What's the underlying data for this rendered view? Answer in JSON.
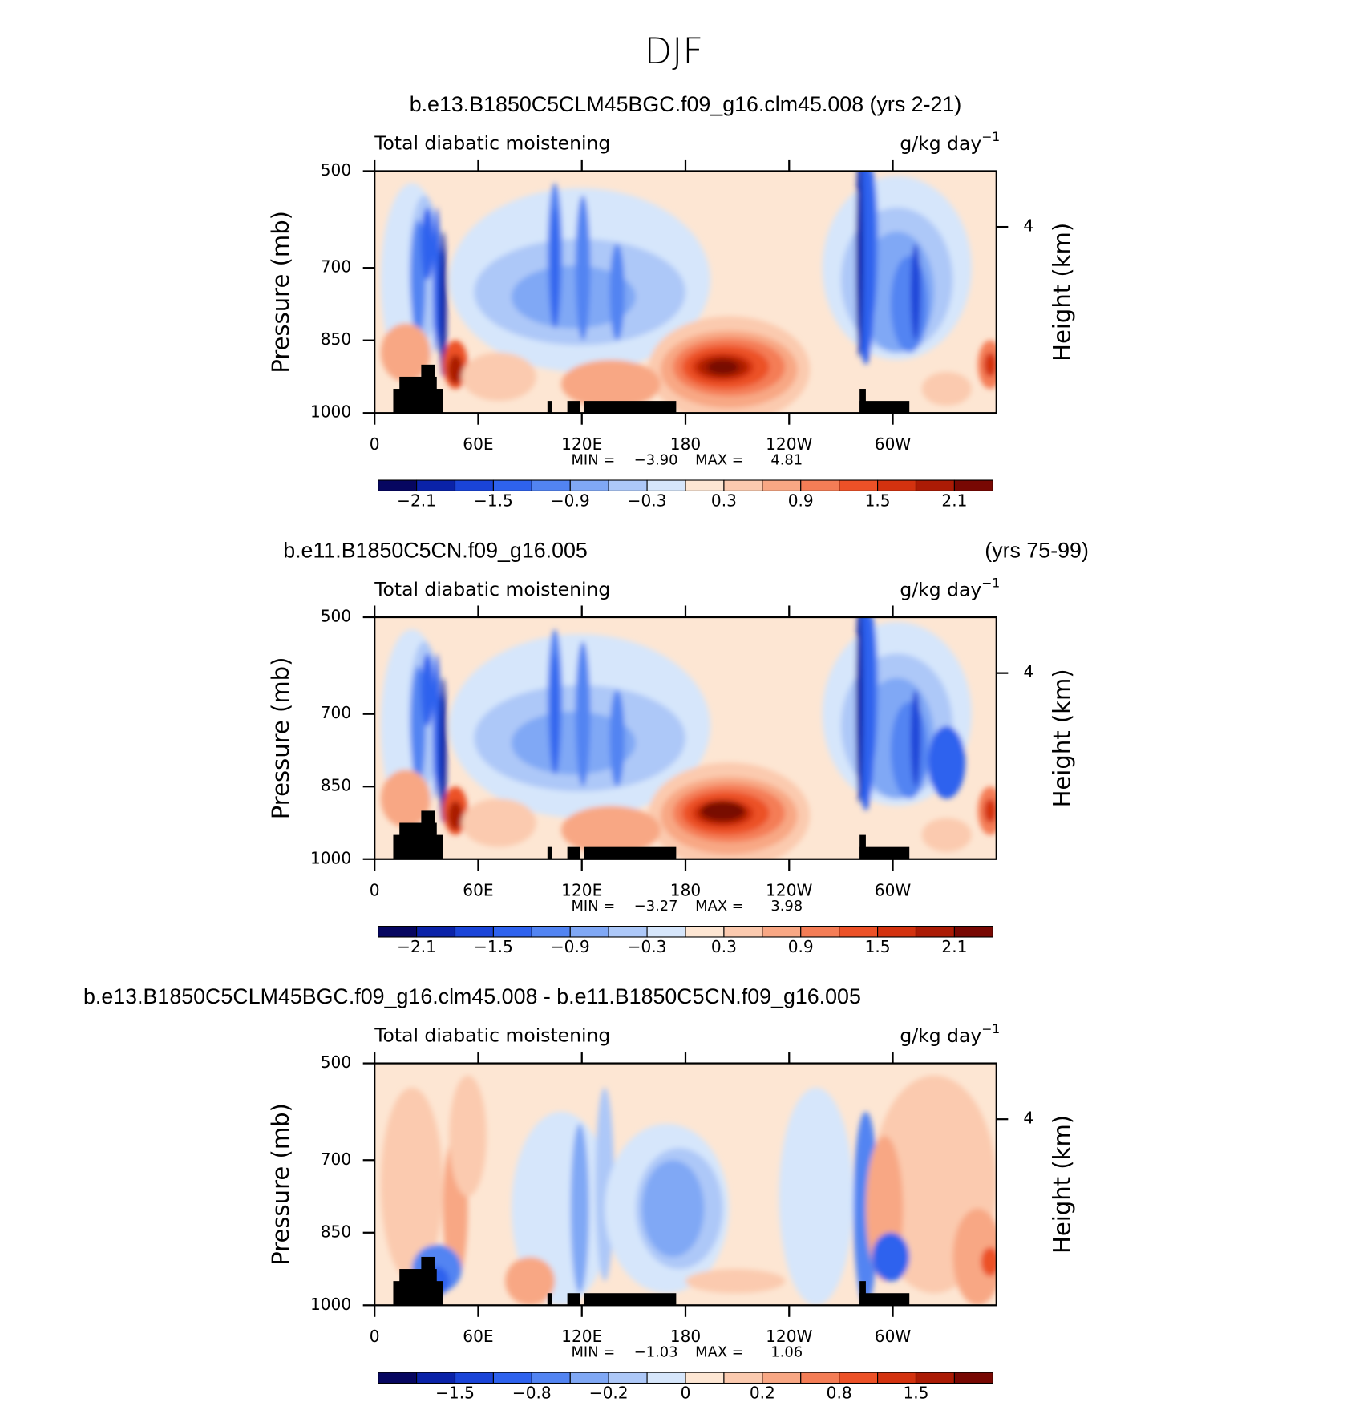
{
  "page_title": "DJF",
  "chart_data": [
    {
      "type": "contour",
      "title": "b.e13.B1850C5CLM45BGC.f09_g16.clm45.008 (yrs 2-21)",
      "subtitle": "Total diabatic moistening",
      "units": "g/kg day",
      "units_exponent": "−1",
      "ylabel": "Pressure (mb)",
      "y2label": "Height (km)",
      "xlim": [
        0,
        360
      ],
      "xticks": [
        0,
        {
          "value": 60,
          "label": "60E"
        },
        {
          "value": 120,
          "label": "120E"
        },
        180,
        {
          "value": 240,
          "label": "120W"
        },
        {
          "value": 300,
          "label": "60W"
        }
      ],
      "ylim": [
        1000,
        500
      ],
      "yticks": [
        500,
        700,
        850,
        1000
      ],
      "y2lim": [
        0,
        5.2
      ],
      "y2ticks": [
        4
      ],
      "stats": {
        "min_text": "MIN =",
        "max_text": "MAX =",
        "min": -3.9,
        "max": 4.81,
        "value_labels": [
          "−3.90",
          "4.81"
        ]
      },
      "colorbar": {
        "colors": [
          "#060660",
          "#0a22a8",
          "#1a44d8",
          "#2e62ee",
          "#5284f2",
          "#80a8f5",
          "#adc8f8",
          "#d6e6fb",
          "#fde6d3",
          "#fbcaaf",
          "#f8a784",
          "#f47d56",
          "#ec5127",
          "#d3320f",
          "#ab1b05",
          "#780803"
        ],
        "ticks": [
          {
            "value": -2.1,
            "label": "−2.1"
          },
          {
            "value": -1.5,
            "label": "−1.5"
          },
          {
            "value": -0.9,
            "label": "−0.9"
          },
          {
            "value": -0.3,
            "label": "−0.3"
          },
          0.3,
          0.9,
          1.5,
          2.1
        ]
      }
    },
    {
      "type": "contour",
      "title": "b.e11.B1850C5CN.f09_g16.005",
      "title_right": "(yrs 75-99)",
      "subtitle": "Total diabatic moistening",
      "units": "g/kg day",
      "units_exponent": "−1",
      "ylabel": "Pressure (mb)",
      "y2label": "Height (km)",
      "xlim": [
        0,
        360
      ],
      "xticks": [
        0,
        {
          "value": 60,
          "label": "60E"
        },
        {
          "value": 120,
          "label": "120E"
        },
        180,
        {
          "value": 240,
          "label": "120W"
        },
        {
          "value": 300,
          "label": "60W"
        }
      ],
      "ylim": [
        1000,
        500
      ],
      "yticks": [
        500,
        700,
        850,
        1000
      ],
      "y2lim": [
        0,
        5.2
      ],
      "y2ticks": [
        4
      ],
      "stats": {
        "min_text": "MIN =",
        "max_text": "MAX =",
        "min": -3.27,
        "max": 3.98,
        "value_labels": [
          "−3.27",
          "3.98"
        ]
      },
      "colorbar": {
        "colors": [
          "#060660",
          "#0a22a8",
          "#1a44d8",
          "#2e62ee",
          "#5284f2",
          "#80a8f5",
          "#adc8f8",
          "#d6e6fb",
          "#fde6d3",
          "#fbcaaf",
          "#f8a784",
          "#f47d56",
          "#ec5127",
          "#d3320f",
          "#ab1b05",
          "#780803"
        ],
        "ticks": [
          {
            "value": -2.1,
            "label": "−2.1"
          },
          {
            "value": -1.5,
            "label": "−1.5"
          },
          {
            "value": -0.9,
            "label": "−0.9"
          },
          {
            "value": -0.3,
            "label": "−0.3"
          },
          0.3,
          0.9,
          1.5,
          2.1
        ]
      }
    },
    {
      "type": "contour",
      "title": "b.e13.B1850C5CLM45BGC.f09_g16.clm45.008 - b.e11.B1850C5CN.f09_g16.005",
      "subtitle": "Total diabatic moistening",
      "units": "g/kg day",
      "units_exponent": "−1",
      "ylabel": "Pressure (mb)",
      "y2label": "Height (km)",
      "xlim": [
        0,
        360
      ],
      "xticks": [
        0,
        {
          "value": 60,
          "label": "60E"
        },
        {
          "value": 120,
          "label": "120E"
        },
        180,
        {
          "value": 240,
          "label": "120W"
        },
        {
          "value": 300,
          "label": "60W"
        }
      ],
      "ylim": [
        1000,
        500
      ],
      "yticks": [
        500,
        700,
        850,
        1000
      ],
      "y2lim": [
        0,
        5.2
      ],
      "y2ticks": [
        4
      ],
      "stats": {
        "min_text": "MIN =",
        "max_text": "MAX =",
        "min": -1.03,
        "max": 1.06,
        "value_labels": [
          "−1.03",
          "1.06"
        ]
      },
      "colorbar": {
        "colors": [
          "#060660",
          "#0a22a8",
          "#1a44d8",
          "#2e62ee",
          "#5284f2",
          "#80a8f5",
          "#adc8f8",
          "#d6e6fb",
          "#fde6d3",
          "#fbcaaf",
          "#f8a784",
          "#f47d56",
          "#ec5127",
          "#d3320f",
          "#ab1b05",
          "#780803"
        ],
        "ticks": [
          {
            "value": -1.5,
            "label": "−1.5"
          },
          {
            "value": -0.8,
            "label": "−0.8"
          },
          {
            "value": -0.2,
            "label": "−0.2"
          },
          0,
          0.2,
          0.8,
          1.5
        ]
      }
    }
  ]
}
